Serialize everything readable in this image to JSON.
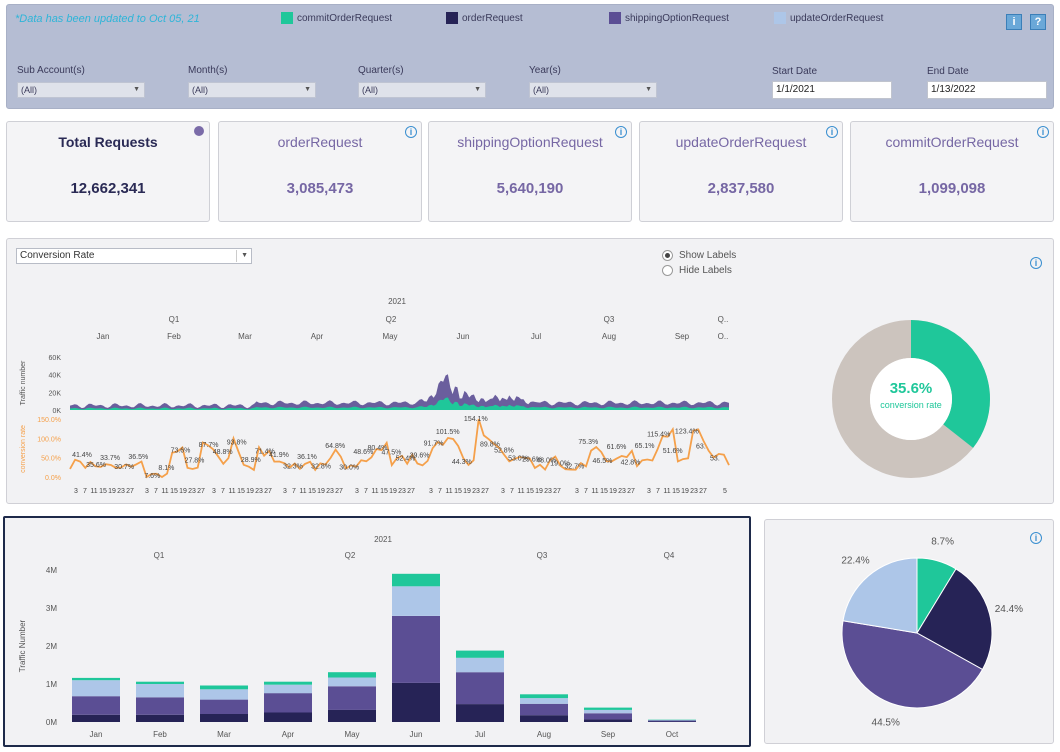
{
  "header": {
    "notice": "*Data has been updated to  Oct 05, 21",
    "legend": [
      {
        "label": "commitOrderRequest",
        "color": "#1fc79a"
      },
      {
        "label": "orderRequest",
        "color": "#262356"
      },
      {
        "label": "shippingOptionRequest",
        "color": "#5b4e94"
      },
      {
        "label": "updateOrderRequest",
        "color": "#adc6e8"
      }
    ],
    "info_button": "i",
    "help_button": "?",
    "filters": [
      {
        "label": "Sub Account(s)",
        "value": "(All)"
      },
      {
        "label": "Month(s)",
        "value": "(All)"
      },
      {
        "label": "Quarter(s)",
        "value": "(All)"
      },
      {
        "label": "Year(s)",
        "value": "(All)"
      }
    ],
    "start_date": {
      "label": "Start Date",
      "value": "1/1/2021"
    },
    "end_date": {
      "label": "End Date",
      "value": "1/13/2022"
    }
  },
  "kpis": [
    {
      "title": "Total Requests",
      "value": "12,662,341"
    },
    {
      "title": "orderRequest",
      "value": "3,085,473"
    },
    {
      "title": "shippingOptionRequest",
      "value": "5,640,190"
    },
    {
      "title": "updateOrderRequest",
      "value": "2,837,580"
    },
    {
      "title": "commitOrderRequest",
      "value": "1,099,098"
    }
  ],
  "info_icon_glyph": "i",
  "middle": {
    "dropdown_value": "Conversion Rate",
    "show_labels": "Show Labels",
    "hide_labels": "Hide Labels",
    "donut_value": "35.6%",
    "donut_label": "conversion rate",
    "donut_fraction": 0.356
  },
  "chart_data": [
    {
      "type": "area",
      "year": "2021",
      "quarters": [
        "Q1",
        "Q2",
        "Q3",
        "Q.."
      ],
      "months": [
        "Jan",
        "Feb",
        "Mar",
        "Apr",
        "May",
        "Jun",
        "Jul",
        "Aug",
        "Sep",
        "O.."
      ],
      "ylabel": "Traffic number",
      "yticks": [
        "60K",
        "40K",
        "20K",
        "0K"
      ],
      "ylim": [
        0,
        60000
      ],
      "series_colors": {
        "total": "#5b4e94",
        "commit": "#1fc79a"
      }
    },
    {
      "type": "line",
      "ylabel": "conversion rate",
      "yticks": [
        "150.0%",
        "100.0%",
        "50.0%",
        "0.0%"
      ],
      "ylim": [
        0,
        150
      ],
      "color": "#f5a04a",
      "data_labels": [
        "41.4%",
        "35.6%",
        "33.7%",
        "30.7%",
        "36.5%",
        "7.6%",
        "8.1%",
        "73.6%",
        "27.8%",
        "87.7%",
        "48.8%",
        "93.8%",
        "28.9%",
        "71.4%",
        "41.9%",
        "32.3%",
        "36.1%",
        "32.8%",
        "64.8%",
        "30.0%",
        "48.6%",
        "80.4%",
        "47.5%",
        "52.4%",
        "39.6%",
        "91.7%",
        "101.5%",
        "44.3%",
        "154.1%",
        "89.8%",
        "52.8%",
        "53.0%",
        "29.6%",
        "48.0%",
        "19.0%",
        "32.7%",
        "75.3%",
        "46.5%",
        "61.6%",
        "42.8%",
        "65.1%",
        "115.4%",
        "51.6%",
        "123.4%",
        "63.",
        "53."
      ],
      "x_tick_days": [
        "3",
        "7",
        "11",
        "15",
        "19",
        "23",
        "27"
      ],
      "last_tick": "5"
    },
    {
      "type": "bar",
      "title": "2021",
      "quarters": [
        "Q1",
        "Q2",
        "Q3",
        "Q4"
      ],
      "categories": [
        "Jan",
        "Feb",
        "Mar",
        "Apr",
        "May",
        "Jun",
        "Jul",
        "Aug",
        "Sep",
        "Oct"
      ],
      "ylabel": "Traffic Number",
      "yticks": [
        "4M",
        "3M",
        "2M",
        "1M",
        "0M"
      ],
      "ylim": [
        0,
        4000000
      ],
      "series": [
        {
          "name": "orderRequest",
          "color": "#262356",
          "values": [
            190000,
            190000,
            210000,
            250000,
            320000,
            1030000,
            470000,
            180000,
            70000,
            15000
          ]
        },
        {
          "name": "shippingOptionRequest",
          "color": "#5b4e94",
          "values": [
            490000,
            460000,
            380000,
            510000,
            620000,
            1760000,
            840000,
            300000,
            160000,
            25000
          ]
        },
        {
          "name": "updateOrderRequest",
          "color": "#adc6e8",
          "values": [
            420000,
            350000,
            270000,
            220000,
            230000,
            780000,
            380000,
            150000,
            90000,
            10000
          ]
        },
        {
          "name": "commitOrderRequest",
          "color": "#1fc79a",
          "values": [
            60000,
            60000,
            100000,
            80000,
            140000,
            330000,
            190000,
            100000,
            60000,
            10000
          ]
        }
      ]
    },
    {
      "type": "pie",
      "slices": [
        {
          "label": "8.7%",
          "value": 8.7,
          "color": "#1fc79a"
        },
        {
          "label": "24.4%",
          "value": 24.4,
          "color": "#262356"
        },
        {
          "label": "44.5%",
          "value": 44.5,
          "color": "#5b4e94"
        },
        {
          "label": "22.4%",
          "value": 22.4,
          "color": "#adc6e8"
        }
      ]
    }
  ]
}
